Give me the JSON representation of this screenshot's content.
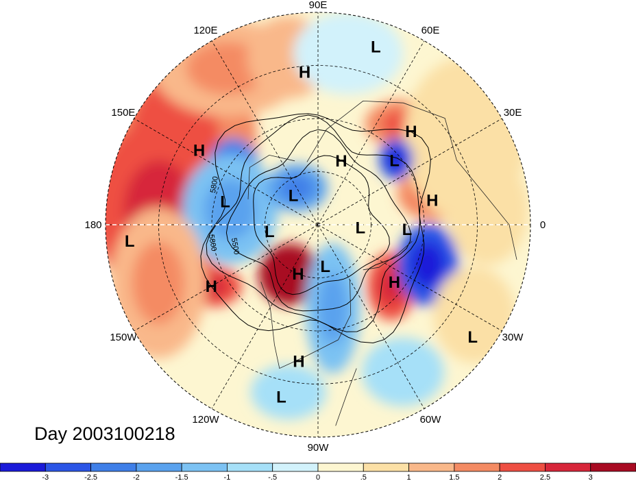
{
  "title": "Day 2003100218",
  "longitude_labels": [
    {
      "text": "90E",
      "angle": -90
    },
    {
      "text": "60E",
      "angle": -60
    },
    {
      "text": "30E",
      "angle": -30
    },
    {
      "text": "0",
      "angle": 0
    },
    {
      "text": "30W",
      "angle": 30
    },
    {
      "text": "60W",
      "angle": 60
    },
    {
      "text": "90W",
      "angle": 90
    },
    {
      "text": "120W",
      "angle": 120
    },
    {
      "text": "150W",
      "angle": 150
    },
    {
      "text": "180",
      "angle": 180
    },
    {
      "text": "150E",
      "angle": 210
    },
    {
      "text": "120E",
      "angle": 240
    }
  ],
  "contour_labels": [
    "5800",
    "5800",
    "5500"
  ],
  "pressure_centers": [
    {
      "type": "L",
      "ang": -72,
      "r": 0.88
    },
    {
      "type": "H",
      "ang": -95,
      "r": 0.72
    },
    {
      "type": "H",
      "ang": -45,
      "r": 0.62
    },
    {
      "type": "H",
      "ang": -70,
      "r": 0.32
    },
    {
      "type": "L",
      "ang": -40,
      "r": 0.47
    },
    {
      "type": "H",
      "ang": -12,
      "r": 0.55
    },
    {
      "type": "H",
      "ang": -148,
      "r": 0.66
    },
    {
      "type": "L",
      "ang": -166,
      "r": 0.45
    },
    {
      "type": "L",
      "ang": -130,
      "r": 0.18
    },
    {
      "type": "L",
      "ang": 172,
      "r": 0.23
    },
    {
      "type": "L",
      "ang": 3,
      "r": 0.42
    },
    {
      "type": "L",
      "ang": 4,
      "r": 0.2
    },
    {
      "type": "L",
      "ang": 80,
      "r": 0.2
    },
    {
      "type": "H",
      "ang": 112,
      "r": 0.25
    },
    {
      "type": "H",
      "ang": 37,
      "r": 0.45
    },
    {
      "type": "H",
      "ang": 150,
      "r": 0.58
    },
    {
      "type": "L",
      "ang": 175,
      "r": 0.89
    },
    {
      "type": "H",
      "ang": 98,
      "r": 0.65
    },
    {
      "type": "L",
      "ang": 102,
      "r": 0.83
    },
    {
      "type": "L",
      "ang": 36,
      "r": 0.9
    }
  ],
  "colorbar": {
    "ticks": [
      "-3",
      "-2.5",
      "-2",
      "-1.5",
      "-1",
      "-.5",
      "0",
      ".5",
      "1",
      "1.5",
      "2",
      "2.5",
      "3"
    ],
    "colors": [
      "#1a1ad9",
      "#2b55e6",
      "#3f7fe8",
      "#5aa2ee",
      "#7cc2f3",
      "#a6e0f8",
      "#d2f2fb",
      "#fdf6d1",
      "#fbe0a6",
      "#f9b88a",
      "#f48b63",
      "#ee4f43",
      "#d7263a",
      "#a80b22"
    ]
  },
  "field_blobs": [
    {
      "ang": -150,
      "r": 0.78,
      "rx": 120,
      "ry": 170,
      "v": 1.8
    },
    {
      "ang": -175,
      "r": 0.75,
      "rx": 95,
      "ry": 135,
      "v": 2.0
    },
    {
      "ang": -120,
      "r": 0.85,
      "rx": 110,
      "ry": 70,
      "v": 1.3
    },
    {
      "ang": -100,
      "r": 0.8,
      "rx": 60,
      "ry": 60,
      "v": 1.0
    },
    {
      "ang": -80,
      "r": 0.82,
      "rx": 80,
      "ry": 60,
      "v": -0.5
    },
    {
      "ang": -50,
      "r": 0.62,
      "rx": 55,
      "ry": 35,
      "v": 1.6
    },
    {
      "ang": -15,
      "r": 0.57,
      "rx": 55,
      "ry": 40,
      "v": 1.8
    },
    {
      "ang": -30,
      "r": 0.8,
      "rx": 90,
      "ry": 120,
      "v": 0.6
    },
    {
      "ang": -150,
      "r": 0.46,
      "rx": 40,
      "ry": 55,
      "v": -2.2
    },
    {
      "ang": -170,
      "r": 0.42,
      "rx": 70,
      "ry": 80,
      "v": -1.2
    },
    {
      "ang": -120,
      "r": 0.2,
      "rx": 45,
      "ry": 35,
      "v": -1.6
    },
    {
      "ang": 120,
      "r": 0.27,
      "rx": 45,
      "ry": 45,
      "v": 3.0
    },
    {
      "ang": 40,
      "r": 0.45,
      "rx": 35,
      "ry": 50,
      "v": 2.0
    },
    {
      "ang": 80,
      "r": 0.4,
      "rx": 40,
      "ry": 95,
      "v": -1.4
    },
    {
      "ang": 20,
      "r": 0.55,
      "rx": 45,
      "ry": 60,
      "v": -2.8
    },
    {
      "ang": -40,
      "r": 0.48,
      "rx": 25,
      "ry": 30,
      "v": -2.6
    },
    {
      "ang": 150,
      "r": 0.58,
      "rx": 45,
      "ry": 30,
      "v": 2.2
    },
    {
      "ang": 160,
      "r": 0.8,
      "rx": 70,
      "ry": 110,
      "v": 1.2
    },
    {
      "ang": 100,
      "r": 0.8,
      "rx": 55,
      "ry": 40,
      "v": -0.9
    },
    {
      "ang": 60,
      "r": 0.8,
      "rx": 60,
      "ry": 50,
      "v": -0.6
    },
    {
      "ang": 30,
      "r": 0.85,
      "rx": 60,
      "ry": 70,
      "v": 0.5
    },
    {
      "ang": -5,
      "r": 0.8,
      "rx": 60,
      "ry": 80,
      "v": 0.7
    }
  ]
}
